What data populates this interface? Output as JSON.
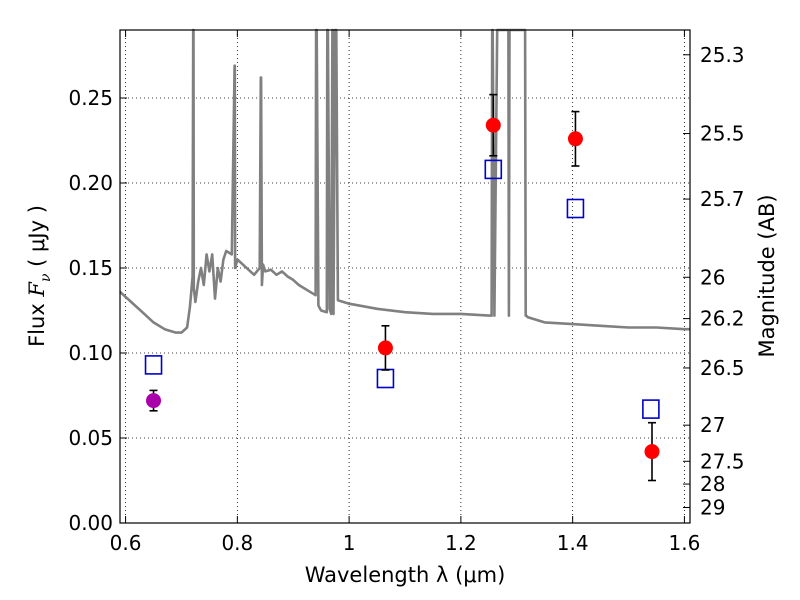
{
  "chart_data": {
    "type": "scatter",
    "xlabel": "Wavelength  λ (μm)",
    "ylabel": "Flux  Fν  ( μJy )",
    "ylabel_parts": [
      "Flux  ",
      "F",
      "ν",
      "  ( μJy )"
    ],
    "y2label": "Magnitude (AB)",
    "xlim": [
      0.59,
      1.61
    ],
    "ylim": [
      0.0,
      0.29
    ],
    "grid": true,
    "x_ticks": [
      0.6,
      0.8,
      1.0,
      1.2,
      1.4,
      1.6
    ],
    "x_tick_labels": [
      "0.6",
      "0.8",
      "1",
      "1.2",
      "1.4",
      "1.6"
    ],
    "y_ticks": [
      0.0,
      0.05,
      0.1,
      0.15,
      0.2,
      0.25
    ],
    "y_tick_labels": [
      "0.00",
      "0.05",
      "0.10",
      "0.15",
      "0.20",
      "0.25"
    ],
    "y2_ticks": [
      25.3,
      25.5,
      25.7,
      26,
      26.2,
      26.5,
      27,
      27.5,
      28,
      29
    ],
    "y2_tick_labels": [
      "25.3",
      "25.5",
      "25.7",
      "26",
      "26.2",
      "26.5",
      "27",
      "27.5",
      "28",
      "29"
    ],
    "y2_zero_point": 23.9,
    "series": [
      {
        "kind": "line",
        "color": "#808080",
        "x": [
          0.59,
          0.61,
          0.63,
          0.65,
          0.67,
          0.69,
          0.7,
          0.71,
          0.715,
          0.72,
          0.721,
          0.7215,
          0.722,
          0.725,
          0.73,
          0.735,
          0.74,
          0.745,
          0.75,
          0.755,
          0.76,
          0.765,
          0.77,
          0.775,
          0.78,
          0.79,
          0.795,
          0.7955,
          0.796,
          0.8,
          0.81,
          0.82,
          0.83,
          0.84,
          0.842,
          0.8425,
          0.844,
          0.846,
          0.85,
          0.86,
          0.87,
          0.88,
          0.89,
          0.9,
          0.91,
          0.92,
          0.93,
          0.94,
          0.941,
          0.942,
          0.945,
          0.948,
          0.95,
          0.96,
          0.961,
          0.962,
          0.965,
          0.968,
          0.97,
          0.971,
          0.972,
          0.975,
          0.977,
          0.98,
          1.0,
          1.05,
          1.1,
          1.15,
          1.2,
          1.25,
          1.255,
          1.256,
          1.257,
          1.26,
          1.265,
          1.27,
          1.28,
          1.285,
          1.286,
          1.287,
          1.29,
          1.3,
          1.315,
          1.316,
          1.317,
          1.32,
          1.35,
          1.4,
          1.45,
          1.5,
          1.55,
          1.6,
          1.61
        ],
        "y": [
          0.136,
          0.13,
          0.124,
          0.118,
          0.114,
          0.112,
          0.112,
          0.115,
          0.127,
          0.145,
          0.29,
          0.29,
          0.138,
          0.13,
          0.142,
          0.15,
          0.14,
          0.158,
          0.148,
          0.158,
          0.132,
          0.15,
          0.142,
          0.155,
          0.16,
          0.158,
          0.269,
          0.269,
          0.15,
          0.155,
          0.152,
          0.149,
          0.146,
          0.15,
          0.262,
          0.262,
          0.14,
          0.152,
          0.148,
          0.149,
          0.146,
          0.148,
          0.145,
          0.143,
          0.14,
          0.138,
          0.136,
          0.134,
          0.29,
          0.29,
          0.128,
          0.126,
          0.125,
          0.124,
          0.29,
          0.29,
          0.126,
          0.123,
          0.29,
          0.29,
          0.123,
          0.29,
          0.29,
          0.131,
          0.129,
          0.126,
          0.124,
          0.123,
          0.123,
          0.122,
          0.122,
          0.29,
          0.29,
          0.122,
          0.29,
          0.29,
          0.29,
          0.29,
          0.122,
          0.29,
          0.29,
          0.29,
          0.29,
          0.122,
          0.122,
          0.121,
          0.118,
          0.117,
          0.116,
          0.115,
          0.115,
          0.114,
          0.114
        ]
      },
      {
        "kind": "marker",
        "marker": "square-open",
        "color": "#0000cc",
        "x": [
          0.65,
          1.065,
          1.258,
          1.405,
          1.54
        ],
        "y": [
          0.093,
          0.085,
          0.208,
          0.185,
          0.067
        ]
      },
      {
        "kind": "marker",
        "marker": "circle-filled",
        "color": "#ff0000",
        "x": [
          1.065,
          1.258,
          1.405,
          1.542
        ],
        "y": [
          0.103,
          0.234,
          0.226,
          0.042
        ],
        "yerr": [
          0.013,
          0.018,
          0.016,
          0.017
        ]
      },
      {
        "kind": "marker",
        "marker": "circle-filled",
        "color": "#aa00aa",
        "x": [
          0.65
        ],
        "y": [
          0.072
        ],
        "yerr": [
          0.006
        ]
      }
    ]
  }
}
